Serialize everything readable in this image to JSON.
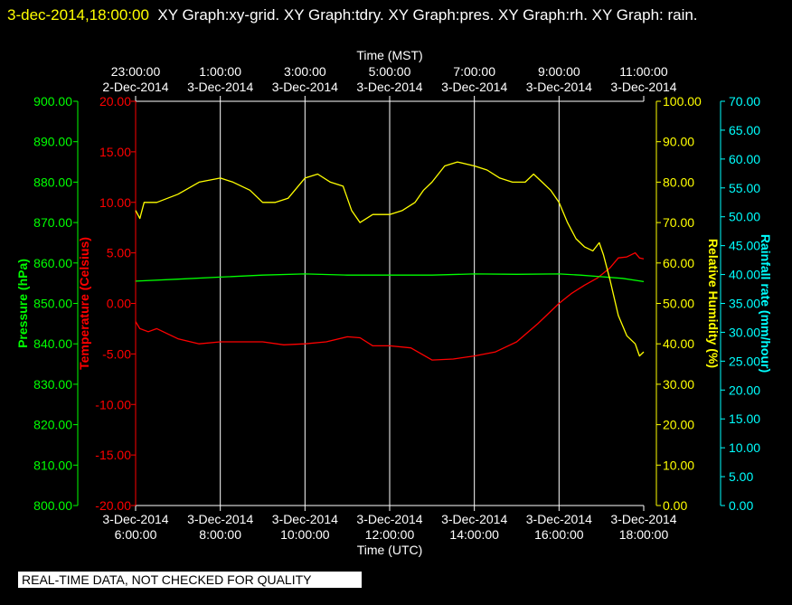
{
  "header": {
    "timestamp": "3-dec-2014,18:00:00",
    "graphs": "XY Graph:xy-grid.  XY Graph:tdry.  XY Graph:pres.  XY Graph:rh.  XY Graph: rain."
  },
  "banner": "REAL-TIME DATA, NOT CHECKED FOR QUALITY",
  "colors": {
    "background": "#000000",
    "temperature": "#ff0000",
    "pressure": "#00ff00",
    "humidity": "#ffff00",
    "rain": "#00ffff",
    "grid": "#ffffff"
  },
  "chart_data": {
    "type": "line",
    "top_axis": {
      "label": "Time (MST)",
      "ticks": [
        {
          "time": "23:00:00",
          "date": "2-Dec-2014"
        },
        {
          "time": "1:00:00",
          "date": "3-Dec-2014"
        },
        {
          "time": "3:00:00",
          "date": "3-Dec-2014"
        },
        {
          "time": "5:00:00",
          "date": "3-Dec-2014"
        },
        {
          "time": "7:00:00",
          "date": "3-Dec-2014"
        },
        {
          "time": "9:00:00",
          "date": "3-Dec-2014"
        },
        {
          "time": "11:00:00",
          "date": "3-Dec-2014"
        }
      ]
    },
    "bottom_axis": {
      "label": "Time (UTC)",
      "range_hours": [
        6,
        18
      ],
      "ticks": [
        {
          "hour": 6,
          "date": "3-Dec-2014",
          "time": "6:00:00"
        },
        {
          "hour": 8,
          "date": "3-Dec-2014",
          "time": "8:00:00"
        },
        {
          "hour": 10,
          "date": "3-Dec-2014",
          "time": "10:00:00"
        },
        {
          "hour": 12,
          "date": "3-Dec-2014",
          "time": "12:00:00"
        },
        {
          "hour": 14,
          "date": "3-Dec-2014",
          "time": "14:00:00"
        },
        {
          "hour": 16,
          "date": "3-Dec-2014",
          "time": "16:00:00"
        },
        {
          "hour": 18,
          "date": "3-Dec-2014",
          "time": "18:00:00"
        }
      ]
    },
    "axes": {
      "pressure": {
        "label": "Pressure (hPa)",
        "min": 800,
        "max": 900,
        "step": 10
      },
      "temperature": {
        "label": "Temperature (Celsius)",
        "min": -20,
        "max": 20,
        "step": 5
      },
      "humidity": {
        "label": "Relative Humidity (%)",
        "min": 0,
        "max": 100,
        "step": 10
      },
      "rain": {
        "label": "Rainfall rate (mm/hour)",
        "min": 0,
        "max": 70,
        "step": 5
      }
    },
    "grid": "vertical",
    "series": [
      {
        "name": "Temperature",
        "axis": "temperature",
        "x": [
          6.0,
          6.1,
          6.3,
          6.5,
          7.0,
          7.5,
          8.0,
          8.5,
          9.0,
          9.5,
          10.0,
          10.5,
          11.0,
          11.3,
          11.6,
          12.0,
          12.5,
          13.0,
          13.5,
          14.0,
          14.5,
          15.0,
          15.5,
          16.0,
          16.3,
          16.6,
          16.9,
          17.2,
          17.4,
          17.6,
          17.8,
          17.9,
          18.0
        ],
        "y": [
          -1.8,
          -2.5,
          -2.8,
          -2.5,
          -3.5,
          -4.0,
          -3.8,
          -3.8,
          -3.8,
          -4.1,
          -4.0,
          -3.8,
          -3.3,
          -3.4,
          -4.2,
          -4.2,
          -4.4,
          -5.6,
          -5.5,
          -5.2,
          -4.8,
          -3.8,
          -2.0,
          0.0,
          1.0,
          1.8,
          2.5,
          3.5,
          4.5,
          4.6,
          5.0,
          4.5,
          4.4
        ]
      },
      {
        "name": "Pressure",
        "axis": "pressure",
        "x": [
          6.0,
          7.0,
          8.0,
          9.0,
          10.0,
          11.0,
          12.0,
          13.0,
          14.0,
          15.0,
          16.0,
          16.5,
          17.0,
          17.5,
          18.0
        ],
        "y": [
          855.5,
          856.0,
          856.5,
          857.0,
          857.3,
          857.0,
          857.0,
          857.0,
          857.3,
          857.2,
          857.3,
          857.0,
          856.6,
          856.2,
          855.4
        ]
      },
      {
        "name": "Relative Humidity",
        "axis": "humidity",
        "x": [
          6.0,
          6.1,
          6.2,
          6.3,
          6.5,
          7.0,
          7.5,
          8.0,
          8.3,
          8.7,
          9.0,
          9.3,
          9.6,
          10.0,
          10.3,
          10.6,
          10.9,
          11.1,
          11.3,
          11.6,
          12.0,
          12.3,
          12.6,
          12.8,
          13.0,
          13.3,
          13.6,
          14.0,
          14.3,
          14.6,
          14.9,
          15.2,
          15.4,
          15.6,
          15.8,
          16.0,
          16.2,
          16.4,
          16.6,
          16.8,
          16.95,
          17.05,
          17.2,
          17.4,
          17.6,
          17.8,
          17.9,
          18.0
        ],
        "y": [
          73,
          71,
          75,
          75,
          75,
          77,
          80,
          81,
          80,
          78,
          75,
          75,
          76,
          81,
          82,
          80,
          79,
          73,
          70,
          72,
          72,
          73,
          75,
          78,
          80,
          84,
          85,
          84,
          83,
          81,
          80,
          80,
          82,
          80,
          78,
          75,
          70,
          66,
          64,
          63,
          65,
          62,
          56,
          47,
          42,
          40,
          37,
          38
        ]
      }
    ]
  }
}
